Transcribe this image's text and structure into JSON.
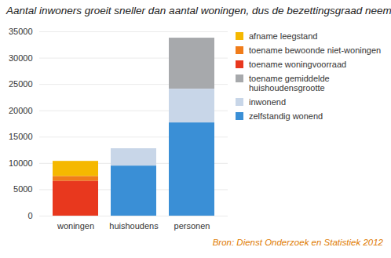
{
  "chart_data": {
    "type": "bar",
    "title": "Aantal inwoners groeit sneller dan aantal woningen, dus de bezettingsgraad neemt toe",
    "source": "Bron: Dienst Onderzoek en Statistiek 2012",
    "categories": [
      "woningen",
      "huishoudens",
      "personen"
    ],
    "series": [
      {
        "name": "afname leegstand",
        "color": "#f5b800",
        "values": [
          2900,
          null,
          null
        ]
      },
      {
        "name": "toename bewoonde niet-woningen",
        "color": "#f07c1a",
        "values": [
          900,
          null,
          null
        ]
      },
      {
        "name": "toename woningvoorraad",
        "color": "#e8381e",
        "values": [
          6600,
          null,
          null
        ]
      },
      {
        "name": "toename gemiddelde huishoudensgrootte",
        "color": "#a7a9ac",
        "values": [
          null,
          null,
          9700
        ]
      },
      {
        "name": "inwonend",
        "color": "#c8d6e8",
        "values": [
          null,
          3300,
          6400
        ]
      },
      {
        "name": "zelfstandig wonend",
        "color": "#3a8fd6",
        "values": [
          null,
          9500,
          17700
        ]
      }
    ],
    "stacked": true,
    "legend": "right",
    "grid": true,
    "ylim": [
      0,
      35000
    ],
    "yticks": [
      0,
      5000,
      10000,
      15000,
      20000,
      25000,
      30000,
      35000
    ]
  }
}
